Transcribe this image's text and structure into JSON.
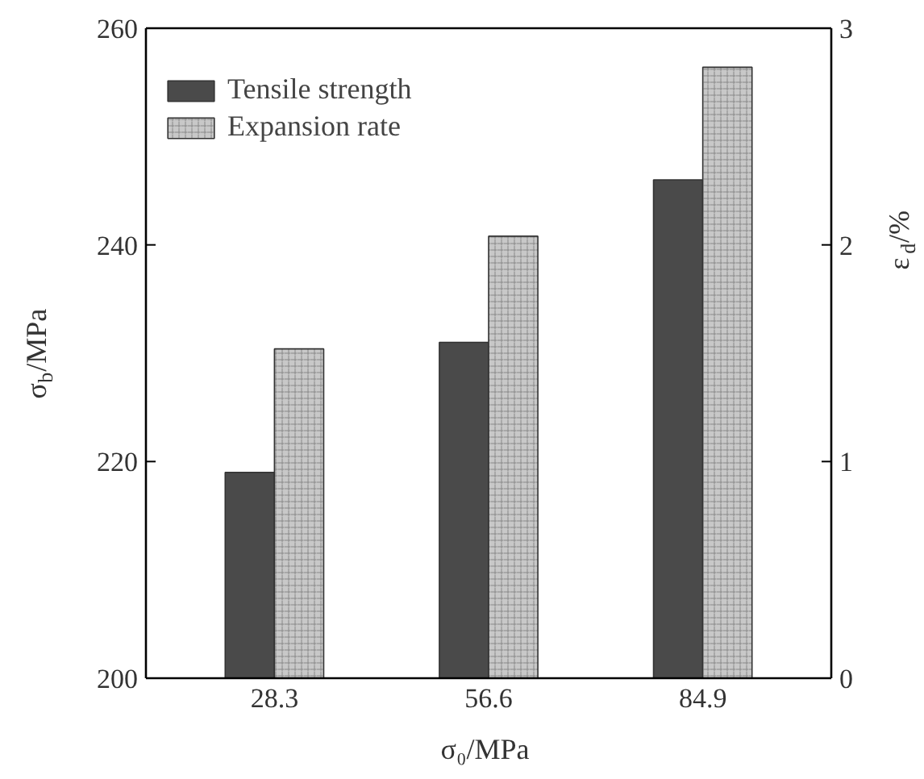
{
  "chart_data": {
    "type": "bar",
    "categories": [
      "28.3",
      "56.6",
      "84.9"
    ],
    "xlabel": "σ₀/MPa",
    "ylabel": "σ$_{b}$/MPa",
    "y2label": "ε$_{d}$/%",
    "series": [
      {
        "name": "Tensile strength",
        "color": "#4a4a4a",
        "values": [
          219,
          231,
          246
        ]
      },
      {
        "name": "Expansion rate",
        "color": "#c8c8c8",
        "values": [
          1.52,
          2.04,
          2.82
        ],
        "axis": "y2"
      }
    ],
    "ylim": [
      200,
      260
    ],
    "yticks": [
      200,
      220,
      240,
      260
    ],
    "y2lim": [
      0,
      3
    ],
    "y2ticks": [
      0,
      1,
      2,
      3
    ],
    "grid": false,
    "legend": "top left"
  }
}
